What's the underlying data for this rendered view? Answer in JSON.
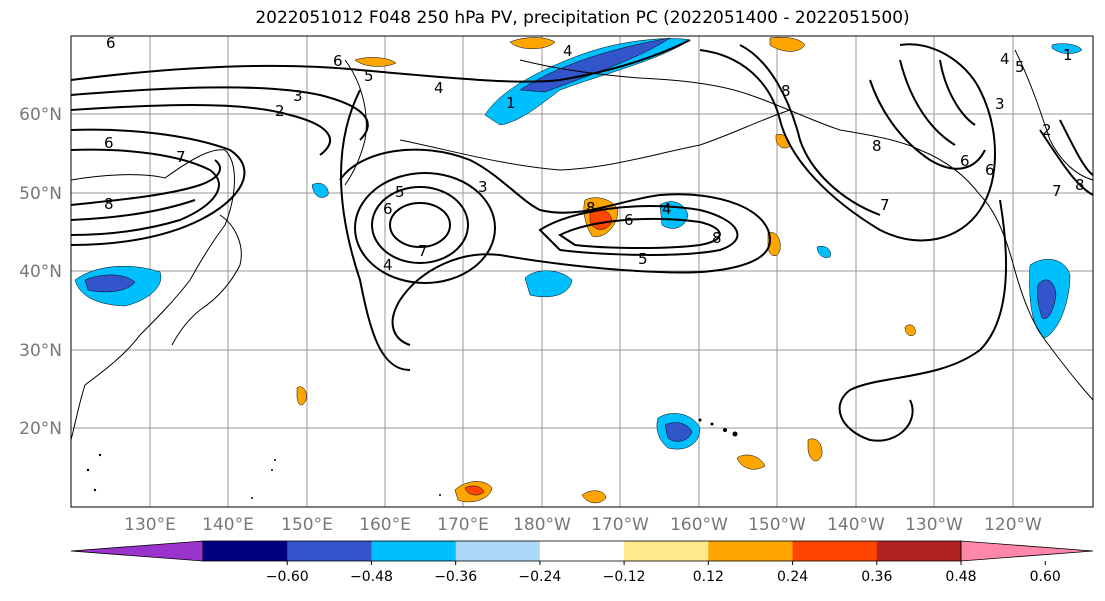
{
  "title": "2022051012 F048 250 hPa PV, precipitation PC (2022051400 - 2022051500)",
  "lat_labels": [
    "60°N",
    "50°N",
    "40°N",
    "30°N",
    "20°N"
  ],
  "lon_labels": [
    "130°E",
    "140°E",
    "150°E",
    "160°E",
    "170°E",
    "180°W",
    "170°W",
    "160°W",
    "150°W",
    "140°W",
    "130°W",
    "120°W"
  ],
  "contour_labels": [
    "6",
    "6",
    "5",
    "4",
    "3",
    "2",
    "1",
    "6",
    "7",
    "8",
    "6",
    "5",
    "4",
    "3",
    "7",
    "8",
    "4",
    "5",
    "6",
    "4",
    "8",
    "8",
    "8",
    "7",
    "6",
    "5",
    "4",
    "3",
    "2",
    "1",
    "8",
    "7",
    "6"
  ],
  "colorbar": {
    "colors": [
      "#9933cc",
      "#000080",
      "#3355cc",
      "#00bfff",
      "#add8f7",
      "#ffffff",
      "#ffe98a",
      "#ffa500",
      "#ff4500",
      "#b22222",
      "#ff88aa"
    ],
    "tick_labels": [
      "−0.60",
      "−0.48",
      "−0.36",
      "−0.24",
      "−0.12",
      "0.12",
      "0.24",
      "0.36",
      "0.48",
      "0.60"
    ]
  }
}
